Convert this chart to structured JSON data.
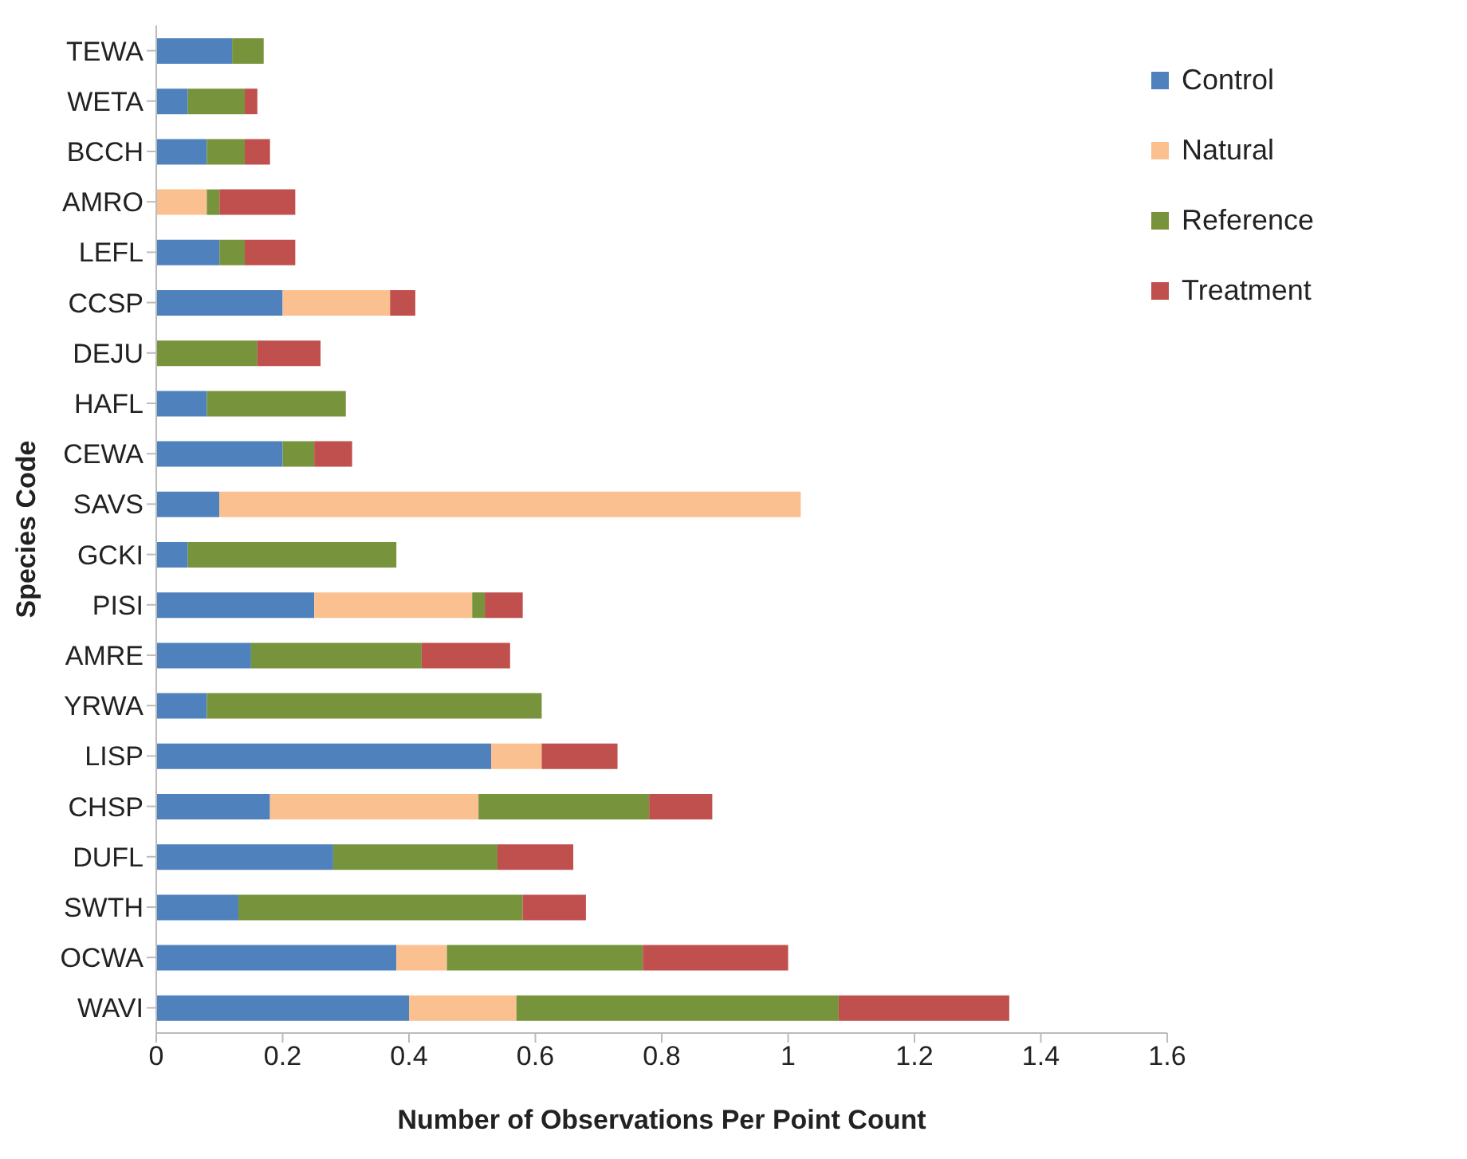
{
  "chart_data": {
    "type": "bar",
    "orientation": "horizontal",
    "stacked": true,
    "xlabel": "Number of Observations Per Point Count",
    "ylabel": "Species Code",
    "categories": [
      "TEWA",
      "WETA",
      "BCCH",
      "AMRO",
      "LEFL",
      "CCSP",
      "DEJU",
      "HAFL",
      "CEWA",
      "SAVS",
      "GCKI",
      "PISI",
      "AMRE",
      "YRWA",
      "LISP",
      "CHSP",
      "DUFL",
      "SWTH",
      "OCWA",
      "WAVI"
    ],
    "series": [
      {
        "name": "Control",
        "color": "#4f81bd",
        "values": [
          0.12,
          0.05,
          0.08,
          null,
          0.1,
          0.2,
          null,
          0.08,
          0.2,
          0.1,
          0.05,
          0.25,
          0.15,
          0.08,
          0.53,
          0.18,
          0.28,
          0.13,
          0.38,
          0.4
        ]
      },
      {
        "name": "Natural",
        "color": "#fac090",
        "values": [
          null,
          null,
          null,
          0.08,
          null,
          0.17,
          null,
          null,
          null,
          0.92,
          null,
          0.25,
          null,
          null,
          0.08,
          0.33,
          null,
          null,
          0.08,
          0.17
        ]
      },
      {
        "name": "Reference",
        "color": "#77933c",
        "values": [
          0.05,
          0.09,
          0.06,
          0.02,
          0.04,
          null,
          0.16,
          0.22,
          0.05,
          null,
          0.33,
          0.02,
          0.27,
          0.53,
          null,
          0.27,
          0.26,
          0.45,
          0.31,
          0.51
        ]
      },
      {
        "name": "Treatment",
        "color": "#c0504d",
        "values": [
          null,
          0.02,
          0.04,
          0.12,
          0.08,
          0.04,
          0.1,
          null,
          0.06,
          null,
          null,
          0.06,
          0.14,
          null,
          0.12,
          0.1,
          0.12,
          0.1,
          0.23,
          0.27
        ]
      }
    ],
    "xlim": [
      0,
      1.6
    ],
    "xticks": [
      0,
      0.2,
      0.4,
      0.6,
      0.8,
      1,
      1.2,
      1.4,
      1.6
    ],
    "grid": false,
    "legend": "top right"
  }
}
